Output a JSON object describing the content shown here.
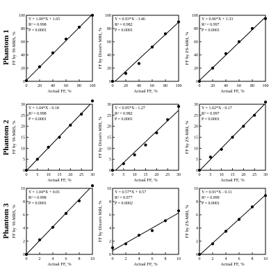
{
  "rows": [
    {
      "label": "Phantom 1"
    },
    {
      "label": "Phantom 2"
    },
    {
      "label": "Phantom 3"
    }
  ],
  "chart_data": [
    {
      "type": "scatter",
      "row": 0,
      "col": 0,
      "xlabel": "Actual FF, %",
      "ylabel": "FF by ¹H-MRS, %",
      "eq": "Y = 1.00*X + 1.65",
      "r2": "R² = 0.998",
      "p": "P = 0.0001",
      "xlim": [
        0,
        100
      ],
      "ylim": [
        0,
        100
      ],
      "xticks": [
        "0",
        "20",
        "40",
        "60",
        "80",
        "100"
      ],
      "yticks": [
        "0",
        "20",
        "40",
        "60",
        "80",
        "100"
      ],
      "x": [
        0,
        20,
        40,
        60,
        80,
        100
      ],
      "y": [
        1,
        22,
        43,
        64,
        82,
        100
      ],
      "fit": {
        "slope": 1.0,
        "intercept": 1.65
      }
    },
    {
      "type": "scatter",
      "row": 0,
      "col": 1,
      "xlabel": "Actual FF, %",
      "ylabel": "FF by Dixon's MRI, %",
      "eq": "Y = 0.93*X - 3.46",
      "r2": "R² = 0.982",
      "p": "P = 0.0001",
      "xlim": [
        0,
        100
      ],
      "ylim": [
        0,
        100
      ],
      "xticks": [
        "0",
        "20",
        "40",
        "60",
        "80",
        "100"
      ],
      "yticks": [
        "0",
        "20",
        "40",
        "60",
        "80",
        "100"
      ],
      "x": [
        0,
        20,
        40,
        60,
        80,
        100
      ],
      "y": [
        0,
        12,
        27,
        52,
        72,
        90
      ],
      "fit": {
        "slope": 0.93,
        "intercept": -3.46
      }
    },
    {
      "type": "scatter",
      "row": 0,
      "col": 2,
      "xlabel": "Actual FF, %",
      "ylabel": "FF by ZS-MRI, %",
      "eq": "Y = 0.96*X + 1.33",
      "r2": "R² = 0.997",
      "p": "P = 0.0001",
      "xlim": [
        0,
        100
      ],
      "ylim": [
        0,
        100
      ],
      "xticks": [
        "0",
        "20",
        "40",
        "60",
        "80",
        "100"
      ],
      "yticks": [
        "0",
        "20",
        "40",
        "60",
        "80",
        "100"
      ],
      "x": [
        0,
        20,
        40,
        60,
        80,
        100
      ],
      "y": [
        0,
        20,
        42,
        60,
        80,
        95
      ],
      "fit": {
        "slope": 0.96,
        "intercept": 1.33
      }
    },
    {
      "type": "scatter",
      "row": 1,
      "col": 0,
      "xlabel": "Actual FF, %",
      "ylabel": "FF by ¹H-MRS, %",
      "eq": "Y = 1.04*X - 0.18",
      "r2": "R² = 0.998",
      "p": "P = 0.0001",
      "xlim": [
        0,
        30
      ],
      "ylim": [
        0,
        30
      ],
      "xticks": [
        "0",
        "5",
        "10",
        "15",
        "20",
        "25",
        "30"
      ],
      "yticks": [
        "0",
        "5",
        "10",
        "15",
        "20",
        "25",
        "30"
      ],
      "x": [
        0,
        5,
        10,
        15,
        20,
        25,
        30
      ],
      "y": [
        0,
        5,
        10.5,
        15,
        20.5,
        25.5,
        31.5
      ],
      "fit": {
        "slope": 1.04,
        "intercept": -0.18
      }
    },
    {
      "type": "scatter",
      "row": 1,
      "col": 1,
      "xlabel": "Actual FF, %",
      "ylabel": "FF by Dixon's MRI, %",
      "eq": "Y = 0.95*X - 1.27",
      "r2": "R² = 0.982",
      "p": "P = 0.0001",
      "xlim": [
        0,
        30
      ],
      "ylim": [
        0,
        30
      ],
      "xticks": [
        "0",
        "5",
        "10",
        "15",
        "20",
        "25",
        "30"
      ],
      "yticks": [
        "0",
        "5",
        "10",
        "15",
        "20",
        "25",
        "30"
      ],
      "x": [
        0,
        5,
        10,
        15,
        20,
        25,
        30
      ],
      "y": [
        0,
        3,
        7,
        11.5,
        17,
        23,
        29
      ],
      "fit": {
        "slope": 0.95,
        "intercept": -1.27
      }
    },
    {
      "type": "scatter",
      "row": 1,
      "col": 2,
      "xlabel": "Actual FF, %",
      "ylabel": "FF by ZS-MRI, %",
      "eq": "Y = 1.02*X - 0.17",
      "r2": "R² = 0.997",
      "p": "P = 0.0001",
      "xlim": [
        0,
        30
      ],
      "ylim": [
        0,
        30
      ],
      "xticks": [
        "0",
        "5",
        "10",
        "15",
        "20",
        "25",
        "30"
      ],
      "yticks": [
        "0",
        "5",
        "10",
        "15",
        "20",
        "25",
        "30"
      ],
      "x": [
        0,
        5,
        10,
        15,
        20,
        25,
        30
      ],
      "y": [
        0,
        6,
        9.5,
        15,
        20,
        25,
        31
      ],
      "fit": {
        "slope": 1.02,
        "intercept": -0.17
      }
    },
    {
      "type": "scatter",
      "row": 2,
      "col": 0,
      "xlabel": "Actual FF, %",
      "ylabel": "FF by ¹H-MRS, %",
      "eq": "Y = 1.04*X + 0.01",
      "r2": "R² = 0.998",
      "p": "P = 0.0001",
      "xlim": [
        0,
        10
      ],
      "ylim": [
        0,
        10
      ],
      "xticks": [
        "0",
        "2",
        "4",
        "6",
        "8",
        "10"
      ],
      "yticks": [
        "0",
        "2",
        "4",
        "6",
        "8",
        "10"
      ],
      "x": [
        0,
        2,
        4,
        6,
        8,
        10
      ],
      "y": [
        0,
        2.2,
        4.1,
        6.2,
        8.1,
        10.4
      ],
      "fit": {
        "slope": 1.04,
        "intercept": 0.01
      }
    },
    {
      "type": "scatter",
      "row": 2,
      "col": 1,
      "xlabel": "Actual FF, %",
      "ylabel": "FF by Dixon's MRI, %",
      "eq": "Y = 0.57*X + 0.57",
      "r2": "R² = 0.977",
      "p": "P = 0.0002",
      "xlim": [
        0,
        10
      ],
      "ylim": [
        0,
        10
      ],
      "xticks": [
        "0",
        "2",
        "4",
        "6",
        "8",
        "10"
      ],
      "yticks": [
        "0",
        "2",
        "4",
        "6",
        "8",
        "10"
      ],
      "x": [
        0,
        2,
        4,
        6,
        8,
        10
      ],
      "y": [
        1.0,
        1.6,
        2.9,
        3.6,
        5.1,
        6.6
      ],
      "fit": {
        "slope": 0.57,
        "intercept": 0.57
      }
    },
    {
      "type": "scatter",
      "row": 2,
      "col": 2,
      "xlabel": "Actual FF, %",
      "ylabel": "FF by ZS-MRI, %",
      "eq": "Y = 0.91*X - 0.11",
      "r2": "R² = 0.999",
      "p": "P = 0.0001",
      "xlim": [
        0,
        10
      ],
      "ylim": [
        0,
        10
      ],
      "xticks": [
        "0",
        "2",
        "4",
        "6",
        "8",
        "10"
      ],
      "yticks": [
        "0",
        "2",
        "4",
        "6",
        "8",
        "10"
      ],
      "x": [
        0,
        2,
        4,
        6,
        8,
        10
      ],
      "y": [
        0,
        1.6,
        3.5,
        5.3,
        7.2,
        8.9
      ],
      "fit": {
        "slope": 0.91,
        "intercept": -0.11
      }
    }
  ]
}
